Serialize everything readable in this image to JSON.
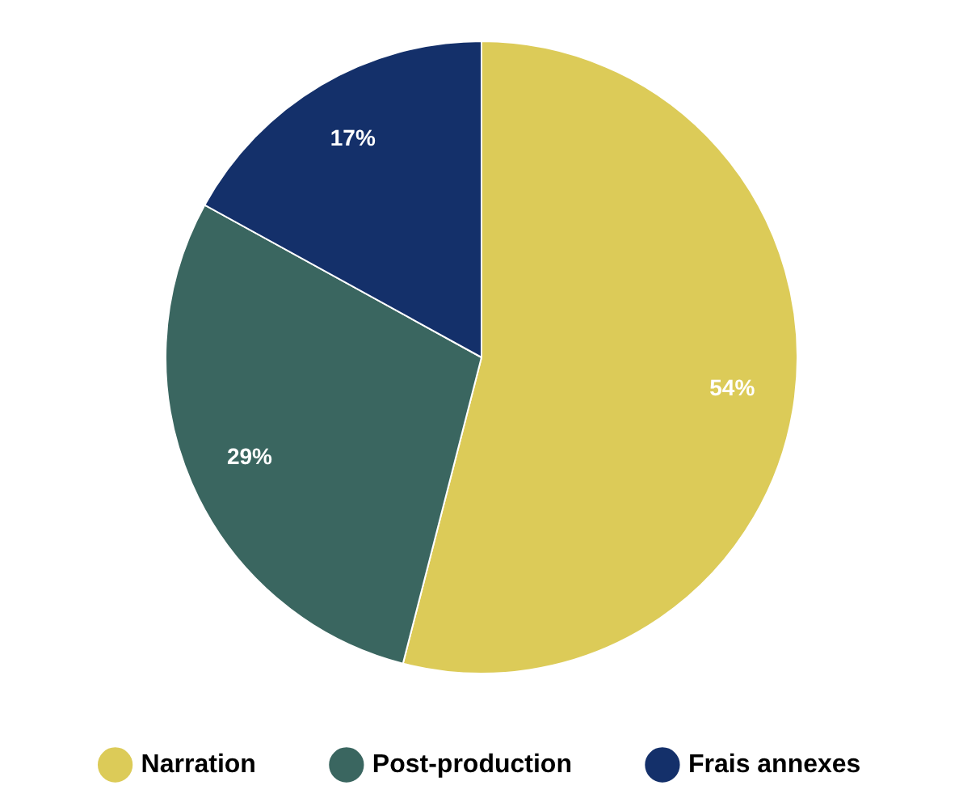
{
  "chart_data": {
    "type": "pie",
    "categories": [
      "Narration",
      "Post-production",
      "Frais annexes"
    ],
    "values": [
      54,
      29,
      17
    ],
    "colors": [
      "#dccb58",
      "#3a6660",
      "#14306a"
    ],
    "value_labels": [
      "54%",
      "29%",
      "17%"
    ],
    "legend": "bottom"
  }
}
